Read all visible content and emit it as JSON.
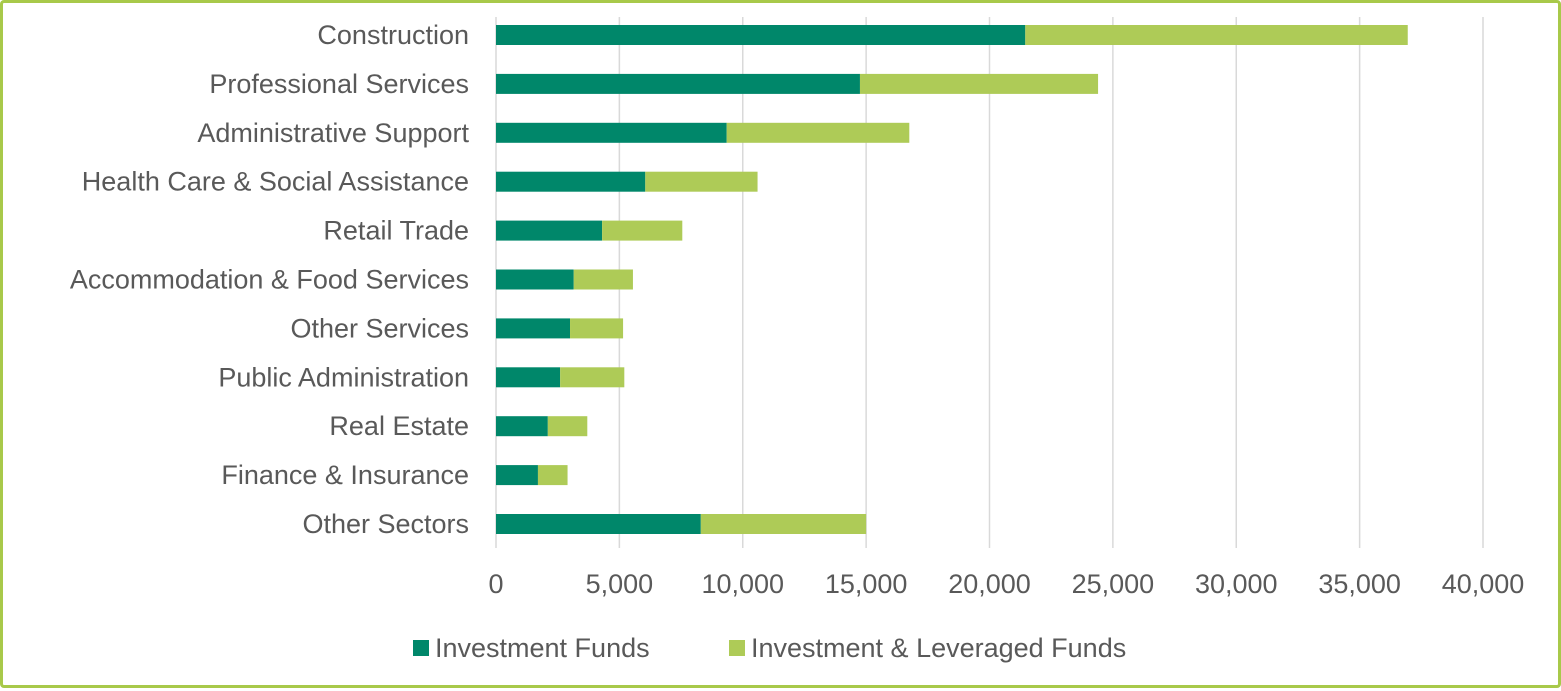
{
  "chart_data": {
    "type": "bar",
    "orientation": "horizontal",
    "stacked": true,
    "categories": [
      "Construction",
      "Professional Services",
      "Administrative Support",
      "Health Care & Social Assistance",
      "Retail Trade",
      "Accommodation & Food Services",
      "Other Services",
      "Public Administration",
      "Real Estate",
      "Finance & Insurance",
      "Other Sectors"
    ],
    "series": [
      {
        "name": "Investment Funds",
        "color": "#00876a",
        "values": [
          21450,
          14750,
          9350,
          6050,
          4300,
          3150,
          3000,
          2600,
          2100,
          1700,
          8300
        ]
      },
      {
        "name": "Investment & Leveraged Funds",
        "color": "#aecb57",
        "values": [
          15500,
          9650,
          7400,
          4550,
          3250,
          2400,
          2150,
          2600,
          1600,
          1200,
          6700
        ]
      }
    ],
    "xlim": [
      0,
      40000
    ],
    "xticks": [
      0,
      5000,
      10000,
      15000,
      20000,
      25000,
      30000,
      35000,
      40000
    ],
    "xtick_labels": [
      "0",
      "5,000",
      "10,000",
      "15,000",
      "20,000",
      "25,000",
      "30,000",
      "35,000",
      "40,000"
    ],
    "grid": "vertical",
    "legend_position": "bottom",
    "title": "",
    "xlabel": "",
    "ylabel": ""
  },
  "frame_color": "#a8c94a"
}
